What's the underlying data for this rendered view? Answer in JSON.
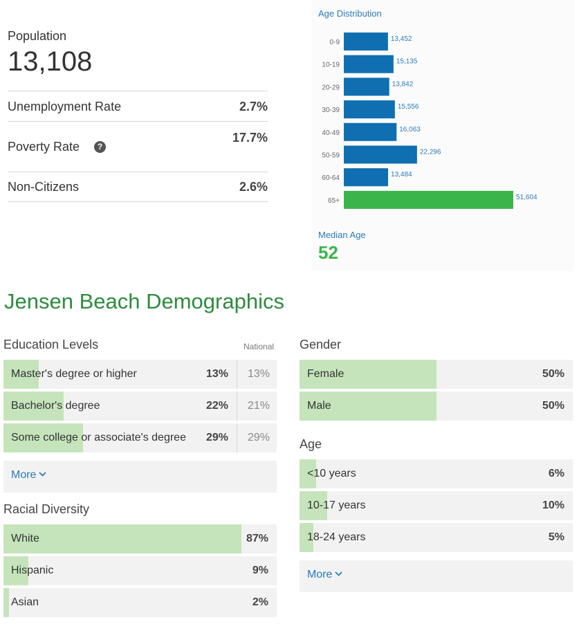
{
  "summary": {
    "population_label": "Population",
    "population_value": "13,108",
    "rows": [
      {
        "label": "Unemployment Rate",
        "value": "2.7%"
      },
      {
        "label": "Poverty Rate",
        "value": "17.7%"
      },
      {
        "label": "Non-Citizens",
        "value": "2.6%"
      }
    ],
    "help_icon": "question-circle-icon"
  },
  "chart_data": {
    "type": "bar",
    "orientation": "horizontal",
    "title": "Age Distribution",
    "categories": [
      "0-9",
      "10-19",
      "20-29",
      "30-39",
      "40-49",
      "50-59",
      "60-64",
      "65+"
    ],
    "values": [
      13452,
      15135,
      13842,
      15556,
      16063,
      22296,
      13484,
      51604
    ],
    "value_labels": [
      "13,452",
      "15,135",
      "13,842",
      "15,556",
      "16,063",
      "22,296",
      "13,484",
      "51,604"
    ],
    "colors": [
      "#0f6fb0",
      "#0f6fb0",
      "#0f6fb0",
      "#0f6fb0",
      "#0f6fb0",
      "#0f6fb0",
      "#0f6fb0",
      "#3ab54a"
    ],
    "xlim": [
      0,
      51604
    ],
    "grid": false
  },
  "median_age": {
    "label": "Median Age",
    "value": "52"
  },
  "demographics": {
    "title": "Jensen Beach Demographics",
    "education": {
      "title": "Education Levels",
      "national_label": "National",
      "rows": [
        {
          "label": "Master's degree or higher",
          "value": "13%",
          "fraction": 0.13,
          "national": "13%"
        },
        {
          "label": "Bachelor's degree",
          "value": "22%",
          "fraction": 0.22,
          "national": "21%"
        },
        {
          "label": "Some college or associate's degree",
          "value": "29%",
          "fraction": 0.29,
          "national": "29%"
        }
      ],
      "more": "More"
    },
    "race": {
      "title": "Racial Diversity",
      "rows": [
        {
          "label": "White",
          "value": "87%",
          "fraction": 0.87
        },
        {
          "label": "Hispanic",
          "value": "9%",
          "fraction": 0.09
        },
        {
          "label": "Asian",
          "value": "2%",
          "fraction": 0.02
        }
      ]
    },
    "gender": {
      "title": "Gender",
      "rows": [
        {
          "label": "Female",
          "value": "50%",
          "fraction": 0.5
        },
        {
          "label": "Male",
          "value": "50%",
          "fraction": 0.5
        }
      ]
    },
    "age": {
      "title": "Age",
      "rows": [
        {
          "label": "<10 years",
          "value": "6%",
          "fraction": 0.06
        },
        {
          "label": "10-17 years",
          "value": "10%",
          "fraction": 0.1
        },
        {
          "label": "18-24 years",
          "value": "5%",
          "fraction": 0.05
        }
      ],
      "more": "More"
    },
    "colors": {
      "fill": "#c5e4bb",
      "track": "#f2f2f2",
      "link": "#2b7bb9",
      "title": "#2e8b3e"
    }
  }
}
